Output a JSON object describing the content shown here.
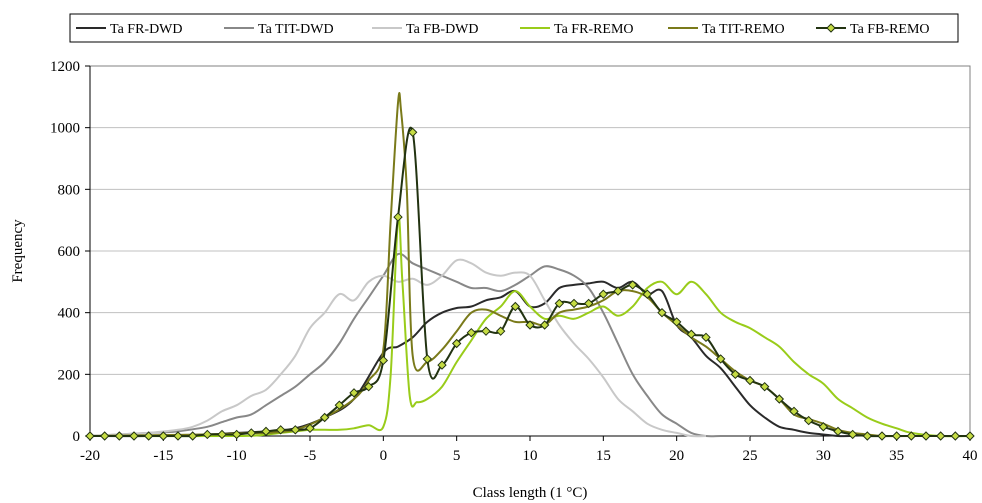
{
  "chart_data": {
    "type": "line",
    "title": "",
    "xlabel": "Class length (1 °C)",
    "ylabel": "Frequency",
    "xlim": [
      -20,
      40
    ],
    "ylim": [
      0,
      1200
    ],
    "xticks": [
      -20,
      -15,
      -10,
      -5,
      0,
      5,
      10,
      15,
      20,
      25,
      30,
      35,
      40
    ],
    "yticks": [
      0,
      200,
      400,
      600,
      800,
      1000,
      1200
    ],
    "grid": "horizontal",
    "legend_position": "top",
    "series": [
      {
        "name": "Ta FR-DWD",
        "color": "#2a2a2a",
        "marker": "none",
        "x": [
          -20,
          -16,
          -12,
          -10,
          -8,
          -6,
          -4,
          -2,
          0,
          1,
          2,
          3,
          4,
          5,
          6,
          7,
          8,
          9,
          10,
          11,
          12,
          13,
          14,
          15,
          16,
          17,
          18,
          19,
          20,
          21,
          22,
          23,
          24,
          25,
          26,
          27,
          28,
          29,
          30,
          31,
          32
        ],
        "y": [
          0,
          0,
          5,
          10,
          15,
          25,
          60,
          120,
          270,
          290,
          320,
          370,
          400,
          415,
          420,
          440,
          450,
          470,
          420,
          430,
          480,
          490,
          495,
          500,
          480,
          500,
          460,
          470,
          360,
          320,
          260,
          220,
          160,
          100,
          60,
          30,
          20,
          10,
          5,
          0,
          0
        ]
      },
      {
        "name": "Ta TIT-DWD",
        "color": "#888888",
        "marker": "none",
        "x": [
          -20,
          -18,
          -16,
          -15,
          -14,
          -12,
          -11,
          -10,
          -9,
          -8,
          -7,
          -6,
          -5,
          -4,
          -3,
          -2,
          -1,
          0,
          1,
          2,
          3,
          4,
          5,
          6,
          7,
          8,
          9,
          10,
          11,
          12,
          13,
          14,
          15,
          16,
          17,
          18,
          19,
          20,
          21,
          22,
          23,
          24,
          25
        ],
        "y": [
          0,
          5,
          10,
          12,
          15,
          30,
          45,
          60,
          70,
          100,
          130,
          160,
          200,
          240,
          300,
          380,
          450,
          520,
          590,
          560,
          540,
          520,
          500,
          480,
          480,
          470,
          490,
          520,
          550,
          540,
          520,
          480,
          400,
          300,
          200,
          130,
          70,
          40,
          10,
          0,
          0,
          0,
          0
        ]
      },
      {
        "name": "Ta FB-DWD",
        "color": "#c8c8c8",
        "marker": "none",
        "x": [
          -20,
          -18,
          -16,
          -14,
          -13,
          -12,
          -11,
          -10,
          -9,
          -8,
          -7,
          -6,
          -5,
          -4,
          -3,
          -2,
          -1,
          0,
          1,
          2,
          3,
          4,
          5,
          6,
          7,
          8,
          9,
          10,
          11,
          12,
          13,
          14,
          15,
          16,
          17,
          18,
          19,
          20,
          21,
          22
        ],
        "y": [
          0,
          5,
          10,
          20,
          30,
          50,
          80,
          100,
          130,
          150,
          200,
          260,
          350,
          400,
          460,
          440,
          500,
          520,
          500,
          510,
          490,
          520,
          570,
          560,
          530,
          520,
          530,
          520,
          440,
          360,
          300,
          250,
          190,
          120,
          80,
          40,
          20,
          10,
          0,
          0
        ]
      },
      {
        "name": "Ta FR-REMO",
        "color": "#99cc1a",
        "marker": "none",
        "x": [
          -20,
          -10,
          -8,
          -7,
          -6,
          -5,
          -4,
          -3,
          -2,
          -1,
          0,
          0.5,
          1,
          1.3,
          1.8,
          2.3,
          3,
          4,
          5,
          6,
          7,
          8,
          9,
          10,
          11,
          12,
          13,
          14,
          15,
          16,
          17,
          18,
          19,
          20,
          21,
          22,
          23,
          24,
          25,
          26,
          27,
          28,
          29,
          30,
          31,
          32,
          33,
          34,
          35,
          36,
          38,
          40
        ],
        "y": [
          0,
          0,
          5,
          10,
          15,
          20,
          20,
          20,
          25,
          35,
          30,
          200,
          700,
          500,
          130,
          110,
          120,
          160,
          240,
          310,
          380,
          420,
          470,
          420,
          380,
          390,
          380,
          400,
          420,
          390,
          420,
          480,
          500,
          460,
          500,
          460,
          400,
          370,
          350,
          320,
          290,
          240,
          200,
          170,
          120,
          90,
          60,
          40,
          25,
          10,
          0,
          0
        ]
      },
      {
        "name": "Ta TIT-REMO",
        "color": "#7a7a1a",
        "marker": "none",
        "x": [
          -20,
          -12,
          -10,
          -8,
          -6,
          -4,
          -2,
          -1,
          0,
          0.5,
          1,
          1.2,
          1.6,
          2,
          3,
          4,
          5,
          6,
          7,
          8,
          9,
          10,
          11,
          12,
          13,
          14,
          15,
          16,
          17,
          18,
          19,
          20,
          21,
          22,
          23,
          24,
          25,
          26,
          27,
          28,
          29,
          30,
          31,
          32,
          33,
          34,
          36,
          40
        ],
        "y": [
          0,
          5,
          8,
          10,
          20,
          60,
          120,
          180,
          280,
          700,
          1080,
          1060,
          800,
          260,
          240,
          280,
          340,
          400,
          410,
          390,
          370,
          370,
          360,
          400,
          410,
          420,
          440,
          470,
          470,
          450,
          400,
          360,
          320,
          290,
          250,
          210,
          180,
          160,
          120,
          70,
          55,
          40,
          20,
          10,
          5,
          0,
          0,
          0
        ]
      },
      {
        "name": "Ta FB-REMO",
        "color": "#223311",
        "marker": "diamond",
        "marker_fill": "#c6dc44",
        "x": [
          -20,
          -19,
          -18,
          -17,
          -16,
          -15,
          -14,
          -13,
          -12,
          -11,
          -10,
          -9,
          -8,
          -7,
          -6,
          -5,
          -4,
          -3,
          -2,
          -1,
          0,
          1,
          2,
          3,
          4,
          5,
          6,
          7,
          8,
          9,
          10,
          11,
          12,
          13,
          14,
          15,
          16,
          17,
          18,
          19,
          20,
          21,
          22,
          23,
          24,
          25,
          26,
          27,
          28,
          29,
          30,
          31,
          32,
          33,
          34,
          35,
          36,
          37,
          38,
          39,
          40
        ],
        "y": [
          0,
          0,
          0,
          0,
          0,
          0,
          0,
          0,
          5,
          5,
          5,
          10,
          15,
          20,
          20,
          25,
          60,
          100,
          140,
          160,
          245,
          710,
          985,
          250,
          230,
          300,
          335,
          340,
          340,
          420,
          360,
          360,
          430,
          430,
          430,
          460,
          470,
          490,
          460,
          400,
          370,
          330,
          320,
          250,
          200,
          180,
          160,
          120,
          80,
          50,
          30,
          15,
          5,
          0,
          0,
          0,
          0,
          0,
          0,
          0,
          0
        ]
      }
    ]
  }
}
